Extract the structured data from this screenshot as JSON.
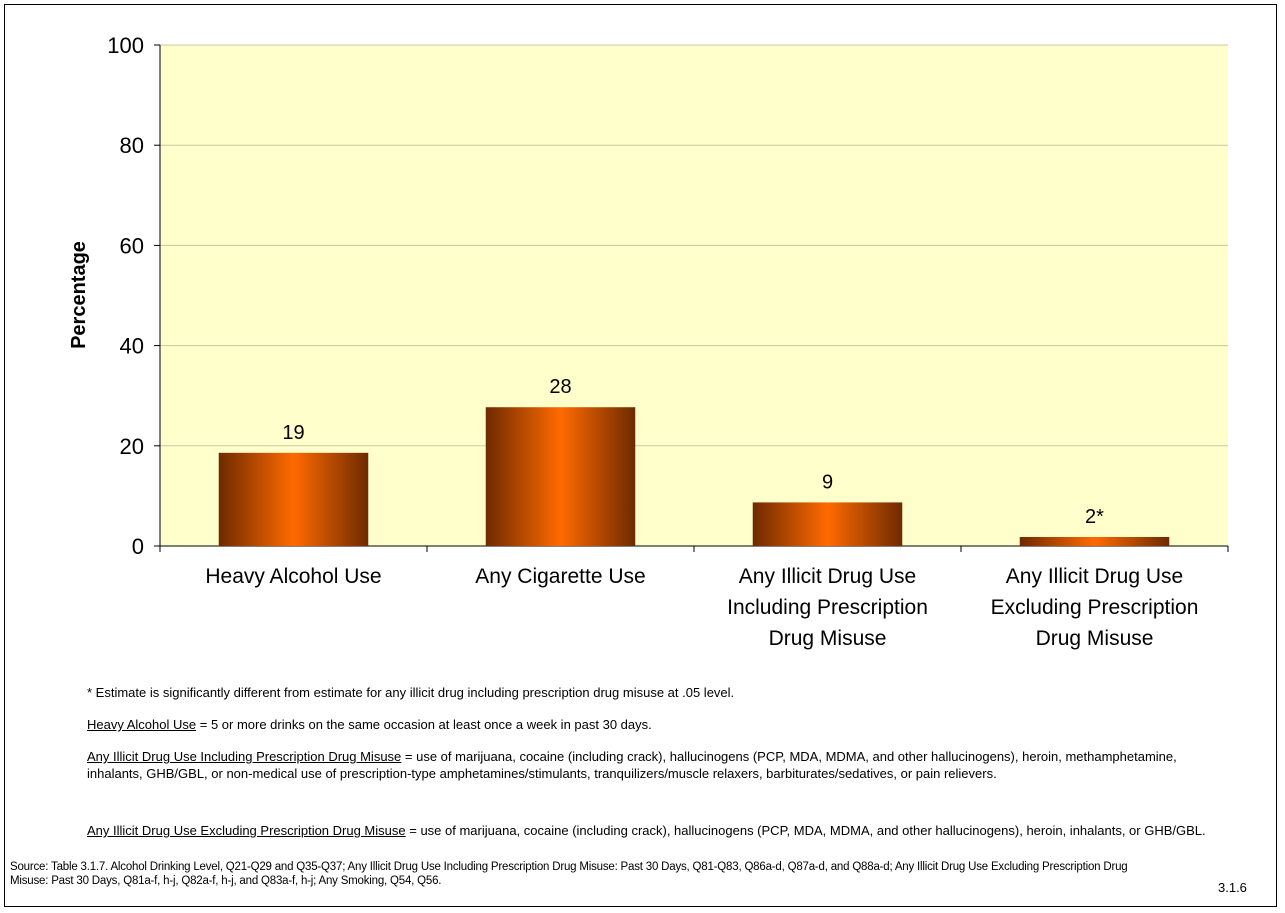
{
  "chart_data": {
    "type": "bar",
    "categories": [
      [
        "Heavy Alcohol Use"
      ],
      [
        "Any Cigarette Use"
      ],
      [
        "Any Illicit Drug Use",
        "Including Prescription",
        "Drug Misuse"
      ],
      [
        "Any Illicit Drug Use",
        "Excluding Prescription",
        "Drug Misuse"
      ]
    ],
    "values": [
      18.6,
      27.7,
      8.7,
      1.8
    ],
    "data_labels": [
      "19",
      "28",
      "9",
      "2*"
    ],
    "ylabel": "Percentage",
    "xlabel": "",
    "ylim": [
      0,
      100
    ],
    "yticks": [
      "0",
      "20",
      "40",
      "60",
      "80",
      "100"
    ],
    "grid": true,
    "colors": {
      "plot_background": "#FFFFCC",
      "gridline": "#C8C8A0",
      "bar_light": "#FF6A00",
      "bar_dark": "#6E2A00"
    }
  },
  "notes": {
    "significance": "* Estimate is significantly different from estimate for any illicit drug including prescription drug misuse at .05 level.",
    "heavy_alcohol_term": "Heavy Alcohol Use",
    "heavy_alcohol_def": " = 5 or more drinks on the same occasion at least once a week in past 30 days.",
    "including_term": "Any Illicit Drug Use Including Prescription Drug Misuse",
    "including_def": " = use of marijuana, cocaine (including crack), hallucinogens (PCP, MDA, MDMA, and other hallucinogens), heroin, methamphetamine, inhalants, GHB/GBL, or non-medical use of prescription-type amphetamines/stimulants, tranquilizers/muscle relaxers, barbiturates/sedatives, or pain relievers.",
    "excluding_term": "Any Illicit Drug Use Excluding Prescription Drug Misuse",
    "excluding_def": " = use of marijuana, cocaine (including crack), hallucinogens (PCP, MDA, MDMA, and other hallucinogens), heroin, inhalants, or GHB/GBL."
  },
  "source": "Source: Table 3.1.7. Alcohol Drinking Level, Q21-Q29 and Q35-Q37; Any Illicit Drug Use Including Prescription Drug Misuse: Past 30 Days, Q81-Q83, Q86a-d, Q87a-d, and Q88a-d; Any Illicit Drug Use Excluding Prescription Drug Misuse: Past 30 Days, Q81a-f, h-j, Q82a-f, h-j, and Q83a-f, h-j; Any Smoking, Q54, Q56.",
  "slide_number": "3.1.6"
}
